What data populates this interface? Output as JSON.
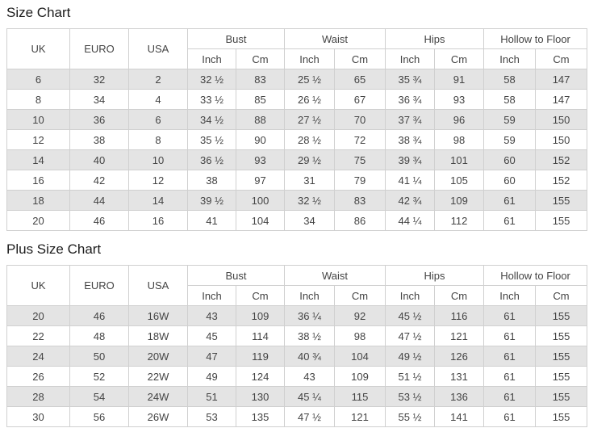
{
  "colors": {
    "stripe": "#e4e4e4",
    "border": "#d0d0d0",
    "text": "#444444",
    "title": "#1c1c1c"
  },
  "tables": [
    {
      "title": "Size Chart",
      "main_headers": [
        "UK",
        "EURO",
        "USA"
      ],
      "group_headers": [
        "Bust",
        "Waist",
        "Hips",
        "Hollow to Floor"
      ],
      "sub_headers": [
        "Inch",
        "Cm"
      ],
      "rows": [
        [
          "6",
          "32",
          "2",
          "32 ½",
          "83",
          "25 ½",
          "65",
          "35 ¾",
          "91",
          "58",
          "147"
        ],
        [
          "8",
          "34",
          "4",
          "33 ½",
          "85",
          "26 ½",
          "67",
          "36 ¾",
          "93",
          "58",
          "147"
        ],
        [
          "10",
          "36",
          "6",
          "34 ½",
          "88",
          "27 ½",
          "70",
          "37 ¾",
          "96",
          "59",
          "150"
        ],
        [
          "12",
          "38",
          "8",
          "35 ½",
          "90",
          "28 ½",
          "72",
          "38 ¾",
          "98",
          "59",
          "150"
        ],
        [
          "14",
          "40",
          "10",
          "36 ½",
          "93",
          "29 ½",
          "75",
          "39 ¾",
          "101",
          "60",
          "152"
        ],
        [
          "16",
          "42",
          "12",
          "38",
          "97",
          "31",
          "79",
          "41 ¼",
          "105",
          "60",
          "152"
        ],
        [
          "18",
          "44",
          "14",
          "39 ½",
          "100",
          "32 ½",
          "83",
          "42 ¾",
          "109",
          "61",
          "155"
        ],
        [
          "20",
          "46",
          "16",
          "41",
          "104",
          "34",
          "86",
          "44 ¼",
          "112",
          "61",
          "155"
        ]
      ]
    },
    {
      "title": "Plus Size Chart",
      "main_headers": [
        "UK",
        "EURO",
        "USA"
      ],
      "group_headers": [
        "Bust",
        "Waist",
        "Hips",
        "Hollow to Floor"
      ],
      "sub_headers": [
        "Inch",
        "Cm"
      ],
      "rows": [
        [
          "20",
          "46",
          "16W",
          "43",
          "109",
          "36 ¼",
          "92",
          "45 ½",
          "116",
          "61",
          "155"
        ],
        [
          "22",
          "48",
          "18W",
          "45",
          "114",
          "38 ½",
          "98",
          "47 ½",
          "121",
          "61",
          "155"
        ],
        [
          "24",
          "50",
          "20W",
          "47",
          "119",
          "40 ¾",
          "104",
          "49 ½",
          "126",
          "61",
          "155"
        ],
        [
          "26",
          "52",
          "22W",
          "49",
          "124",
          "43",
          "109",
          "51 ½",
          "131",
          "61",
          "155"
        ],
        [
          "28",
          "54",
          "24W",
          "51",
          "130",
          "45 ¼",
          "115",
          "53 ½",
          "136",
          "61",
          "155"
        ],
        [
          "30",
          "56",
          "26W",
          "53",
          "135",
          "47 ½",
          "121",
          "55 ½",
          "141",
          "61",
          "155"
        ]
      ]
    }
  ]
}
